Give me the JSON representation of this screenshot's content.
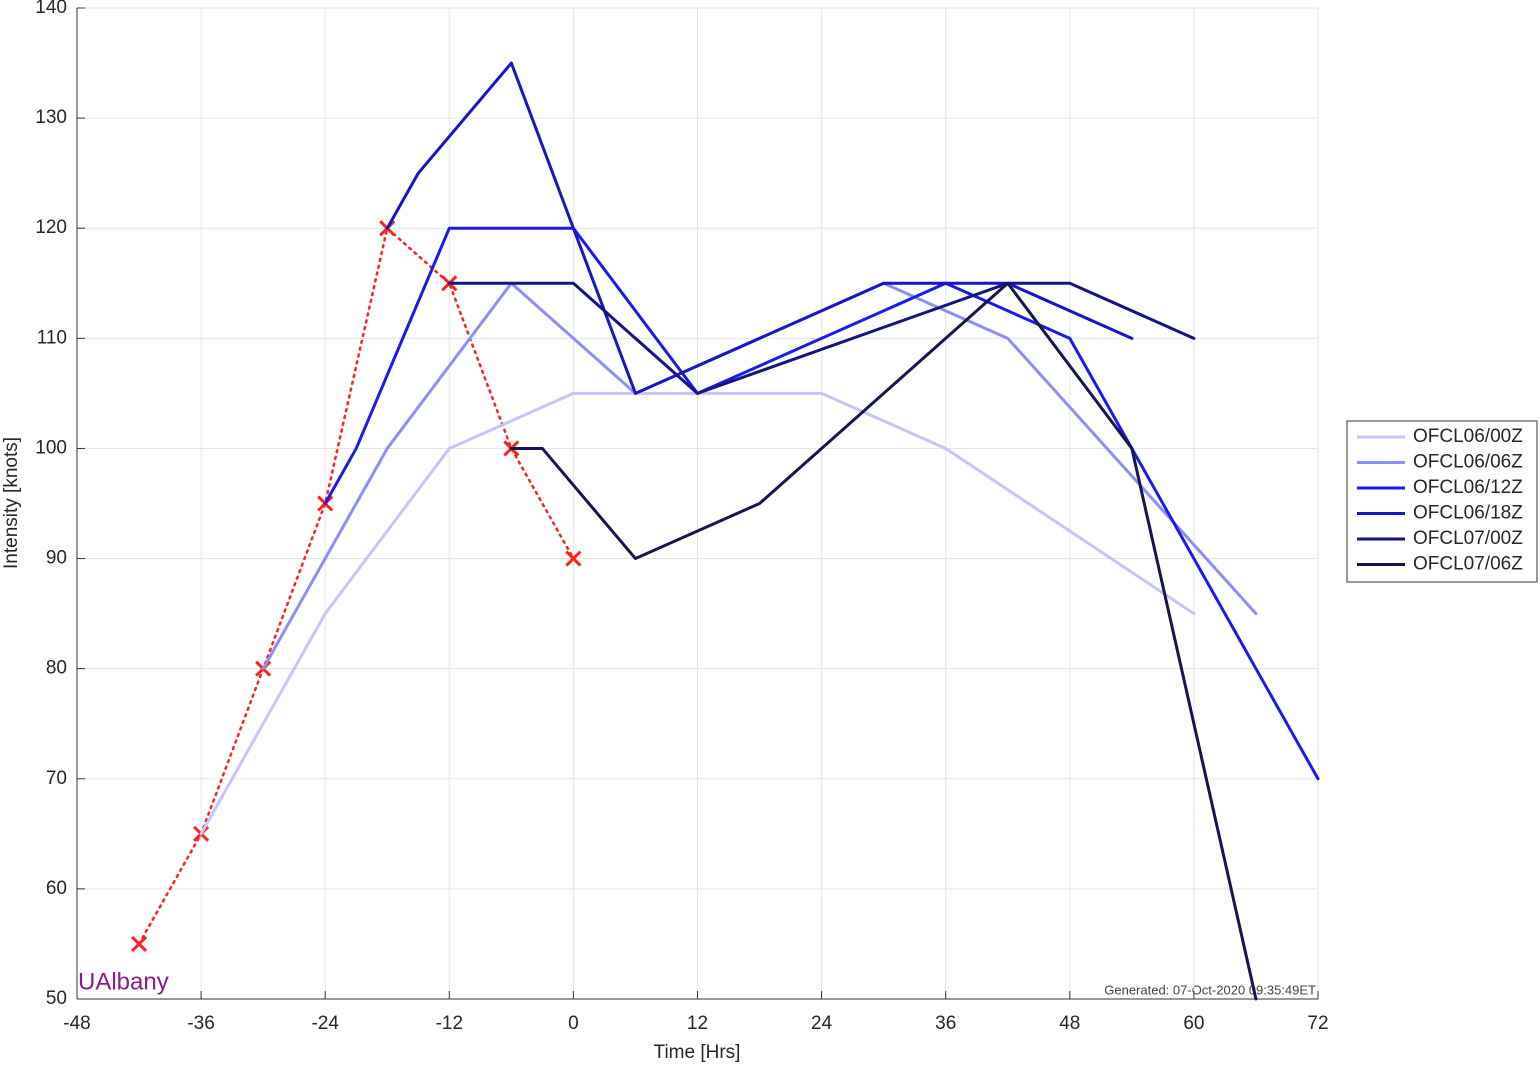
{
  "chart_data": {
    "type": "line",
    "xlabel": "Time [Hrs]",
    "ylabel": "Intensity [knots]",
    "watermark": "UAlbany",
    "footer": "Generated: 07-Oct-2020 09:35:49ET",
    "xlim": [
      -48,
      72
    ],
    "xticks": [
      -48,
      -36,
      -24,
      -12,
      0,
      12,
      24,
      36,
      48,
      60,
      72
    ],
    "ylim": [
      50,
      140
    ],
    "yticks": [
      50,
      60,
      70,
      80,
      90,
      100,
      110,
      120,
      130,
      140
    ],
    "grid": true,
    "legend": "east-outside",
    "series": [
      {
        "color": "#ff2020",
        "dotted": true,
        "marker": "x",
        "x": [
          -42,
          -36,
          -30,
          -24,
          -18,
          -12,
          -6,
          0
        ],
        "values": [
          55,
          65,
          80,
          95,
          120,
          115,
          100,
          90
        ]
      },
      {
        "name": "OFCL06/00Z",
        "color": "#c3c6f7",
        "x": [
          -36,
          -24,
          -12,
          0,
          24,
          36,
          60
        ],
        "values": [
          65,
          85,
          100,
          105,
          105,
          100,
          85
        ]
      },
      {
        "name": "OFCL06/06Z",
        "color": "#8c8ff5",
        "x": [
          -30,
          -18,
          -6,
          6,
          30,
          42,
          66
        ],
        "values": [
          80,
          100,
          115,
          105,
          115,
          110,
          85
        ]
      },
      {
        "name": "OFCL06/12Z",
        "color": "#1a1af0",
        "x": [
          -24,
          -21,
          -12,
          0,
          12,
          36,
          48,
          72
        ],
        "values": [
          95,
          100,
          120,
          120,
          105,
          115,
          110,
          70
        ]
      },
      {
        "name": "OFCL06/18Z",
        "color": "#1616c4",
        "x": [
          -18,
          -15,
          -6,
          0,
          6,
          30,
          42,
          54
        ],
        "values": [
          120,
          125,
          135,
          120,
          105,
          115,
          115,
          110
        ]
      },
      {
        "name": "OFCL07/00Z",
        "color": "#151580",
        "x": [
          -12,
          0,
          12,
          42,
          48,
          60
        ],
        "values": [
          115,
          115,
          105,
          115,
          115,
          110
        ]
      },
      {
        "name": "OFCL07/06Z",
        "color": "#15154f",
        "x": [
          -6,
          -3,
          6,
          18,
          42,
          54,
          66
        ],
        "values": [
          100,
          100,
          90,
          95,
          115,
          100,
          50
        ]
      }
    ]
  }
}
